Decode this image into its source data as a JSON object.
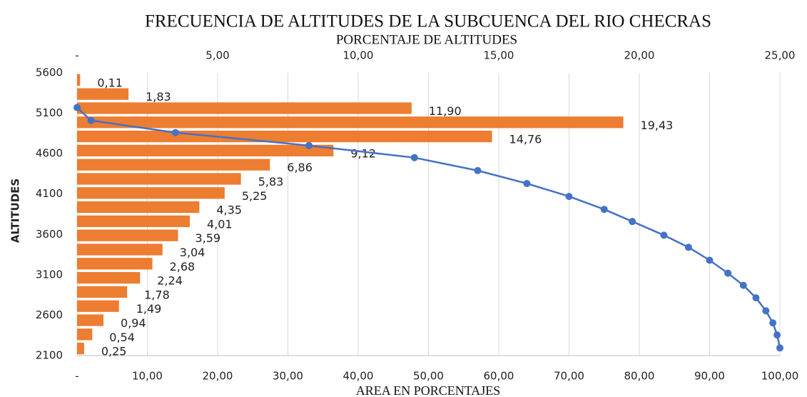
{
  "chart_data": {
    "type": "bar",
    "title": "FRECUENCIA DE ALTITUDES DE LA SUBCUENCA DEL RIO CHECRAS",
    "x2_label": "PORCENTAJE DE ALTITUDES",
    "xlabel": "AREA EN PORCENTAJES",
    "ylabel": "ALTITUDES",
    "xlim": [
      0,
      100
    ],
    "xticks": [
      {
        "value": 0,
        "label": "-"
      },
      {
        "value": 10,
        "label": "10,00"
      },
      {
        "value": 20,
        "label": "20,00"
      },
      {
        "value": 30,
        "label": "30,00"
      },
      {
        "value": 40,
        "label": "40,00"
      },
      {
        "value": 50,
        "label": "50,00"
      },
      {
        "value": 60,
        "label": "60,00"
      },
      {
        "value": 70,
        "label": "70,00"
      },
      {
        "value": 80,
        "label": "80,00"
      },
      {
        "value": 90,
        "label": "90,00"
      },
      {
        "value": 100,
        "label": "100,00"
      }
    ],
    "x2lim": [
      0,
      25
    ],
    "x2ticks": [
      {
        "value": 0,
        "label": "-"
      },
      {
        "value": 5,
        "label": "5,00"
      },
      {
        "value": 10,
        "label": "10,00"
      },
      {
        "value": 15,
        "label": "15,00"
      },
      {
        "value": 20,
        "label": "20,00"
      },
      {
        "value": 25,
        "label": "25,00"
      }
    ],
    "ylim": [
      2100,
      5600
    ],
    "yticks": [
      5600,
      5100,
      4600,
      4100,
      3600,
      3100,
      2600,
      2100
    ],
    "grid": true,
    "bars": {
      "color": "#ed7d31",
      "axis": "x2",
      "values": [
        0.11,
        1.83,
        11.9,
        19.43,
        14.76,
        9.12,
        6.86,
        5.83,
        5.25,
        4.35,
        4.01,
        3.59,
        3.04,
        2.68,
        2.24,
        1.78,
        1.49,
        0.94,
        0.54,
        0.25
      ],
      "value_labels": [
        "0,11",
        "1,83",
        "11,90",
        "19,43",
        "14,76",
        "9,12",
        "6,86",
        "5,83",
        "5,25",
        "4,35",
        "4,01",
        "3,59",
        "3,04",
        "2,68",
        "2,24",
        "1,78",
        "1,49",
        "0,94",
        "0,54",
        "0,25"
      ]
    },
    "line": {
      "color": "#4472c4",
      "x": [
        0,
        2,
        14,
        33,
        48,
        57,
        64,
        70,
        75,
        79,
        83.5,
        87,
        90,
        92.6,
        94.8,
        96.6,
        98,
        99,
        99.6,
        100
      ],
      "y": [
        5170,
        5010,
        4860,
        4700,
        4550,
        4390,
        4230,
        4070,
        3910,
        3760,
        3590,
        3440,
        3280,
        3120,
        2970,
        2815,
        2655,
        2505,
        2355,
        2195
      ]
    }
  }
}
